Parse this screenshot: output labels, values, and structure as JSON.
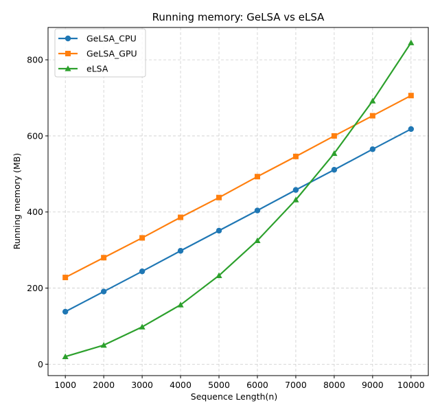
{
  "chart_data": {
    "type": "line",
    "title": "Running memory: GeLSA vs eLSA",
    "xlabel": "Sequence Length(n)",
    "ylabel": "Running memory (MB)",
    "x": [
      1000,
      2000,
      3000,
      4000,
      5000,
      6000,
      7000,
      8000,
      9000,
      10000
    ],
    "xticks": [
      "1000",
      "2000",
      "3000",
      "4000",
      "5000",
      "6000",
      "7000",
      "8000",
      "9000",
      "10000"
    ],
    "yticks": [
      0,
      200,
      400,
      600,
      800
    ],
    "ylim": [
      -30,
      885
    ],
    "xlim": [
      550,
      10450
    ],
    "grid": true,
    "legend_position": "top-left",
    "series": [
      {
        "name": "GeLSA_CPU",
        "color": "#1f77b4",
        "marker": "circle",
        "values": [
          138,
          191,
          244,
          298,
          351,
          404,
          458,
          511,
          565,
          618
        ]
      },
      {
        "name": "GeLSA_GPU",
        "color": "#ff7f0e",
        "marker": "square",
        "values": [
          228,
          280,
          332,
          386,
          438,
          493,
          546,
          600,
          653,
          706
        ]
      },
      {
        "name": "eLSA",
        "color": "#2ca02c",
        "marker": "triangle",
        "values": [
          20,
          50,
          98,
          156,
          233,
          325,
          432,
          554,
          692,
          845
        ]
      }
    ]
  }
}
